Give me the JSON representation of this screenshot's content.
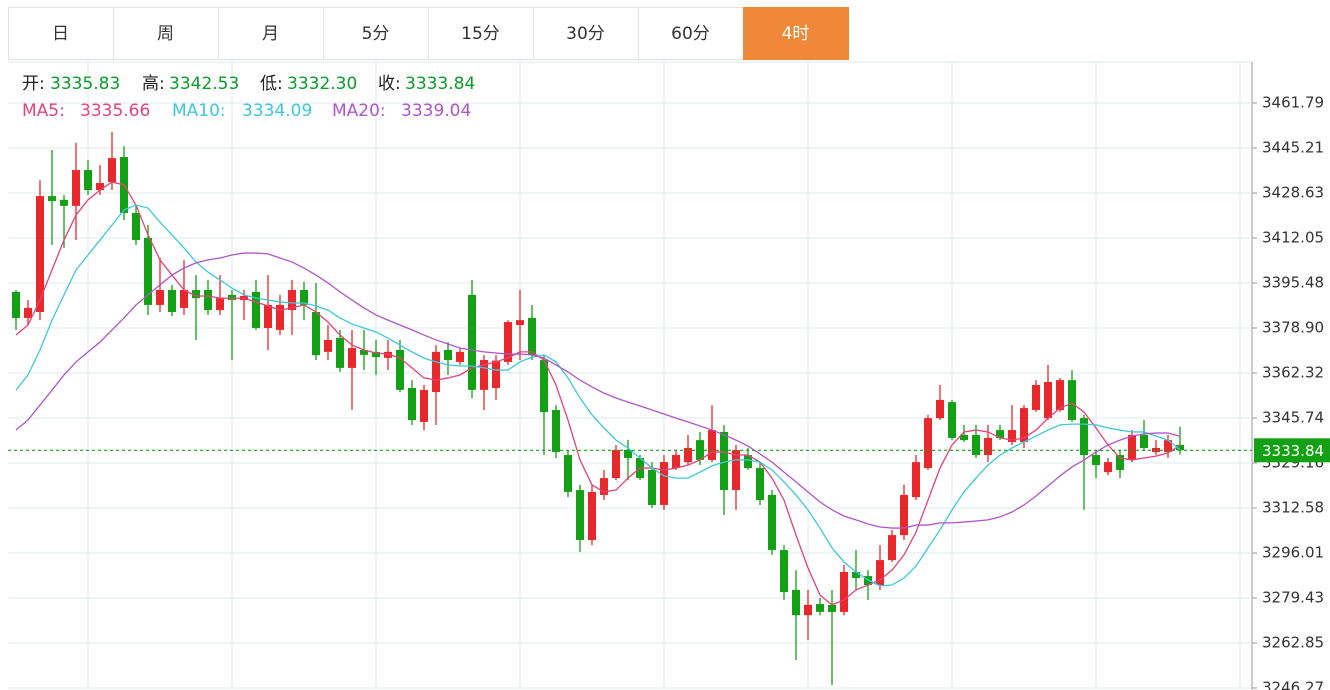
{
  "tabs": [
    "日",
    "周",
    "月",
    "5分",
    "15分",
    "30分",
    "60分",
    "4时"
  ],
  "active_tab": 7,
  "chart_data": {
    "type": "candlestick",
    "info": {
      "names": [
        "开:",
        "高:",
        "低:",
        "收:"
      ],
      "values": [
        3335.83,
        3342.53,
        3332.3,
        3333.84
      ],
      "value_labels": [
        "3335.83",
        "3342.53",
        "3332.30",
        "3333.84"
      ],
      "color": "#0a9c2a"
    },
    "ylim": [
      3246.27,
      3476.9
    ],
    "yticks": [
      3461.79,
      3445.21,
      3428.63,
      3412.05,
      3395.48,
      {
        "value": 3378.9,
        "label": "3378.90"
      },
      3362.32,
      3345.74,
      3329.16,
      3312.58,
      3296.01,
      3279.43,
      3262.85,
      3246.27
    ],
    "grid": true,
    "up_color": "#e8282a",
    "down_color": "#14a014",
    "open": [
      3392.2,
      3382.6,
      3384.8,
      3427.5,
      3426.1,
      3423.9,
      3437.1,
      3429.7,
      3432.7,
      3441.9,
      3421.3,
      3412.1,
      3387.4,
      3392.9,
      3386.3,
      3392.9,
      3392.9,
      3385.5,
      3391.1,
      3389.2,
      3392.2,
      3378.9,
      3378.2,
      3385.5,
      3392.9,
      3384.8,
      3370.1,
      3375.2,
      3364.2,
      3370.8,
      3370.1,
      3367.9,
      3370.8,
      3356.8,
      3344.3,
      3355.3,
      3370.8,
      3366.4,
      3391.1,
      3356.1,
      3356.8,
      3366.4,
      3380.0,
      3382.6,
      3367.1,
      3348.7,
      3332.1,
      3319.2,
      3300.8,
      3317.4,
      3323.6,
      3334.0,
      3331.0,
      3326.6,
      3313.7,
      3327.3,
      3329.5,
      3337.6,
      3330.3,
      3340.6,
      3319.2,
      3332.1,
      3327.3,
      3317.4,
      3297.1,
      3282.4,
      3273.1,
      3277.2,
      3276.9,
      3274.3,
      3289.0,
      3287.5,
      3284.2,
      3293.4,
      3302.6,
      3316.6,
      3327.3,
      3345.7,
      3351.6,
      3339.5,
      3339.5,
      3332.1,
      3341.3,
      3336.9,
      3336.9,
      3348.7,
      3345.7,
      3348.7,
      3359.7,
      3345.7,
      3332.1,
      3325.8,
      3332.1,
      3330.3,
      3339.5,
      3333.2,
      3333.2,
      3335.83
    ],
    "close": [
      3382.6,
      3386.3,
      3427.5,
      3425.7,
      3423.9,
      3437.1,
      3429.7,
      3432.3,
      3441.5,
      3421.3,
      3411.3,
      3387.4,
      3392.9,
      3384.8,
      3392.9,
      3389.9,
      3385.5,
      3389.9,
      3389.2,
      3390.7,
      3378.9,
      3387.4,
      3387.4,
      3392.9,
      3387.4,
      3368.9,
      3374.5,
      3364.2,
      3371.5,
      3369.0,
      3368.2,
      3370.1,
      3356.1,
      3345.0,
      3356.1,
      3370.1,
      3367.1,
      3370.1,
      3356.1,
      3367.1,
      3366.9,
      3381.1,
      3381.8,
      3368.9,
      3347.9,
      3333.2,
      3318.5,
      3300.8,
      3318.5,
      3323.6,
      3334.0,
      3331.0,
      3323.6,
      3313.7,
      3329.5,
      3332.1,
      3334.7,
      3330.3,
      3341.3,
      3319.2,
      3333.9,
      3327.3,
      3315.5,
      3297.1,
      3281.6,
      3273.1,
      3276.9,
      3274.3,
      3274.3,
      3289.0,
      3286.8,
      3284.2,
      3293.4,
      3302.6,
      3317.4,
      3329.5,
      3345.7,
      3352.4,
      3338.4,
      3337.6,
      3332.1,
      3338.4,
      3338.4,
      3341.3,
      3349.4,
      3357.9,
      3359.0,
      3359.7,
      3345.0,
      3332.1,
      3328.4,
      3329.5,
      3326.6,
      3339.5,
      3334.7,
      3334.7,
      3337.6,
      3333.84
    ],
    "high": [
      3392.9,
      3389.2,
      3433.4,
      3444.5,
      3427.9,
      3447.1,
      3440.8,
      3438.9,
      3451.1,
      3445.9,
      3424.2,
      3416.8,
      3404.7,
      3394.7,
      3403.9,
      3398.4,
      3396.6,
      3398.4,
      3392.9,
      3392.9,
      3396.6,
      3398.4,
      3391.1,
      3396.6,
      3395.9,
      3395.5,
      3380.0,
      3378.2,
      3378.2,
      3378.2,
      3374.5,
      3374.5,
      3374.5,
      3359.7,
      3357.9,
      3372.6,
      3373.7,
      3371.5,
      3396.6,
      3368.9,
      3368.9,
      3381.8,
      3392.9,
      3387.4,
      3368.9,
      3350.5,
      3333.9,
      3321.1,
      3321.1,
      3326.6,
      3335.8,
      3337.7,
      3332.1,
      3329.5,
      3332.1,
      3334.0,
      3339.5,
      3340.6,
      3350.5,
      3343.2,
      3335.8,
      3334.7,
      3329.5,
      3319.2,
      3298.9,
      3289.7,
      3282.4,
      3279.4,
      3282.4,
      3291.6,
      3297.1,
      3289.7,
      3298.9,
      3304.5,
      3321.1,
      3332.1,
      3346.9,
      3357.9,
      3352.4,
      3343.2,
      3343.2,
      3343.2,
      3343.2,
      3350.5,
      3350.5,
      3359.7,
      3365.3,
      3360.5,
      3363.4,
      3346.9,
      3334.0,
      3331.0,
      3334.0,
      3341.3,
      3345.0,
      3337.6,
      3339.5,
      3342.53
    ],
    "low": [
      3378.2,
      3380.0,
      3381.8,
      3409.5,
      3408.4,
      3411.3,
      3427.9,
      3427.9,
      3429.7,
      3418.7,
      3409.5,
      3383.7,
      3384.8,
      3383.3,
      3383.7,
      3374.5,
      3383.7,
      3383.7,
      3367.1,
      3381.8,
      3378.2,
      3370.8,
      3376.3,
      3376.3,
      3381.8,
      3367.1,
      3367.1,
      3362.7,
      3348.7,
      3363.4,
      3361.6,
      3363.4,
      3355.3,
      3343.2,
      3341.3,
      3343.2,
      3361.6,
      3365.3,
      3353.1,
      3348.7,
      3352.4,
      3365.3,
      3367.1,
      3367.1,
      3332.1,
      3331.0,
      3316.6,
      3296.4,
      3298.9,
      3315.5,
      3322.9,
      3322.9,
      3322.9,
      3312.6,
      3311.9,
      3326.6,
      3328.4,
      3328.4,
      3329.5,
      3310.0,
      3311.9,
      3326.6,
      3313.7,
      3295.3,
      3278.7,
      3256.6,
      3263.9,
      3273.1,
      3247.4,
      3273.1,
      3282.4,
      3278.7,
      3282.4,
      3292.7,
      3300.8,
      3315.5,
      3326.6,
      3345.0,
      3337.6,
      3336.9,
      3331.0,
      3329.5,
      3337.6,
      3335.8,
      3334.7,
      3348.0,
      3345.0,
      3348.0,
      3344.3,
      3311.9,
      3323.6,
      3324.7,
      3323.6,
      3329.5,
      3334.0,
      3332.1,
      3331.0,
      3332.3
    ],
    "series": [
      {
        "name": "MA5:",
        "color": "#e5427a",
        "values": [
          3376.3,
          3380.0,
          3389.2,
          3400.3,
          3411.3,
          3420.5,
          3426.1,
          3429.7,
          3432.7,
          3431.6,
          3424.2,
          3413.2,
          3404.0,
          3398.4,
          3392.9,
          3390.7,
          3390.7,
          3389.9,
          3389.9,
          3389.9,
          3388.5,
          3387.0,
          3385.5,
          3386.3,
          3387.4,
          3384.8,
          3381.1,
          3376.3,
          3372.6,
          3370.8,
          3369.7,
          3369.3,
          3367.8,
          3364.2,
          3360.5,
          3359.7,
          3360.5,
          3361.6,
          3364.2,
          3365.3,
          3366.4,
          3367.9,
          3370.1,
          3370.1,
          3367.1,
          3357.9,
          3345.0,
          3330.3,
          3321.1,
          3318.5,
          3319.2,
          3323.6,
          3327.3,
          3327.3,
          3326.6,
          3327.3,
          3328.4,
          3330.3,
          3333.2,
          3333.2,
          3332.1,
          3332.1,
          3329.5,
          3323.6,
          3315.5,
          3302.6,
          3290.5,
          3280.5,
          3276.9,
          3278.7,
          3282.4,
          3284.2,
          3286.1,
          3289.7,
          3295.3,
          3303.7,
          3315.5,
          3327.3,
          3335.8,
          3340.6,
          3341.3,
          3340.6,
          3338.4,
          3337.6,
          3338.4,
          3341.3,
          3345.7,
          3349.4,
          3351.2,
          3347.9,
          3342.1,
          3335.8,
          3331.0,
          3330.3,
          3331.0,
          3331.7,
          3332.9,
          3335.66
        ]
      },
      {
        "name": "MA10:",
        "color": "#3cc8dc",
        "values": [
          3356.0,
          3361.6,
          3370.8,
          3381.8,
          3391.1,
          3400.3,
          3405.8,
          3411.3,
          3416.8,
          3422.4,
          3424.2,
          3423.1,
          3417.9,
          3413.2,
          3408.4,
          3403.2,
          3399.5,
          3396.6,
          3393.6,
          3391.1,
          3389.9,
          3389.2,
          3388.5,
          3388.1,
          3388.1,
          3387.0,
          3385.5,
          3382.6,
          3380.4,
          3378.9,
          3377.4,
          3375.2,
          3372.6,
          3370.1,
          3367.8,
          3366.4,
          3365.3,
          3364.9,
          3364.9,
          3364.2,
          3363.4,
          3363.4,
          3366.4,
          3368.2,
          3369.0,
          3366.4,
          3360.5,
          3353.1,
          3346.9,
          3342.1,
          3337.6,
          3334.7,
          3331.0,
          3327.3,
          3324.4,
          3323.6,
          3323.6,
          3325.8,
          3328.1,
          3329.5,
          3330.3,
          3330.3,
          3329.5,
          3326.6,
          3322.2,
          3317.4,
          3311.9,
          3305.2,
          3297.9,
          3292.7,
          3289.0,
          3286.1,
          3283.9,
          3284.2,
          3286.8,
          3291.2,
          3297.9,
          3304.5,
          3311.9,
          3318.5,
          3323.6,
          3328.4,
          3332.1,
          3334.7,
          3336.9,
          3339.1,
          3341.3,
          3343.2,
          3343.5,
          3343.5,
          3343.2,
          3342.1,
          3341.3,
          3340.6,
          3340.6,
          3339.1,
          3337.6,
          3334.09
        ]
      },
      {
        "name": "MA20:",
        "color": "#b055c8",
        "values": [
          3341.3,
          3345.0,
          3350.5,
          3356.0,
          3361.6,
          3366.4,
          3370.1,
          3373.7,
          3378.2,
          3382.6,
          3387.4,
          3391.1,
          3394.8,
          3398.4,
          3401.0,
          3402.9,
          3404.0,
          3404.7,
          3405.8,
          3406.5,
          3406.5,
          3406.2,
          3404.7,
          3403.2,
          3401.0,
          3398.4,
          3395.5,
          3392.2,
          3389.2,
          3386.3,
          3383.7,
          3381.8,
          3380.0,
          3378.2,
          3376.3,
          3374.5,
          3373.0,
          3371.5,
          3370.8,
          3370.1,
          3369.7,
          3369.3,
          3369.3,
          3369.0,
          3367.8,
          3365.3,
          3362.7,
          3359.7,
          3357.2,
          3354.9,
          3353.1,
          3351.6,
          3350.2,
          3348.7,
          3347.2,
          3345.7,
          3344.3,
          3342.8,
          3341.3,
          3339.5,
          3337.6,
          3335.4,
          3332.5,
          3329.5,
          3325.8,
          3322.2,
          3318.5,
          3314.8,
          3311.9,
          3309.6,
          3308.2,
          3306.7,
          3305.6,
          3305.2,
          3305.2,
          3306.3,
          3306.3,
          3307.1,
          3307.1,
          3307.4,
          3307.8,
          3308.2,
          3309.3,
          3311.1,
          3313.7,
          3317.0,
          3320.7,
          3324.4,
          3327.7,
          3330.3,
          3333.2,
          3335.8,
          3337.6,
          3339.1,
          3339.9,
          3340.2,
          3340.2,
          3339.04
        ]
      }
    ],
    "last_color": "#14a014"
  }
}
